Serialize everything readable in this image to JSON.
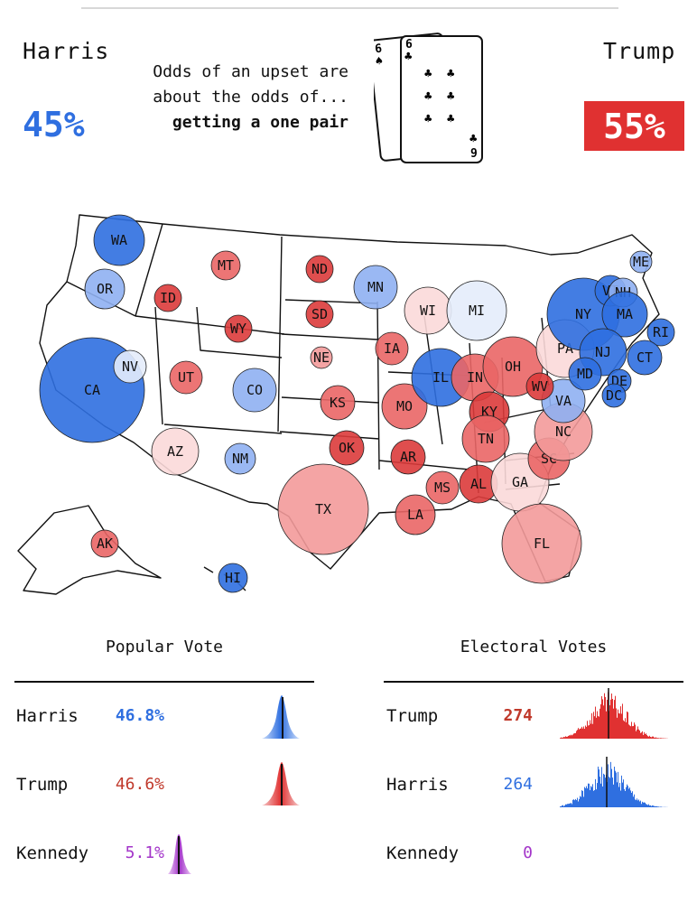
{
  "header": {
    "harris": {
      "name": "Harris",
      "odds": "45%",
      "color": "#2f6fe0"
    },
    "trump": {
      "name": "Trump",
      "odds": "55%",
      "color": "#e03131"
    },
    "odds_line1": "Odds of an upset are",
    "odds_line2": "about the odds of...",
    "odds_line3": "getting a one pair",
    "cards": {
      "back": {
        "rank": "6",
        "suit": "♠"
      },
      "front": {
        "rank": "6",
        "suit": "♣",
        "bottom_rank": "9",
        "bottom_suit": "♣"
      }
    }
  },
  "map": {
    "states": [
      {
        "abbr": "WA",
        "lean": "d",
        "shade": "strong"
      },
      {
        "abbr": "OR",
        "lean": "d",
        "shade": "mid"
      },
      {
        "abbr": "CA",
        "lean": "d",
        "shade": "strong"
      },
      {
        "abbr": "NV",
        "lean": "d",
        "shade": "faint"
      },
      {
        "abbr": "ID",
        "lean": "r",
        "shade": "strong"
      },
      {
        "abbr": "MT",
        "lean": "r",
        "shade": "mid"
      },
      {
        "abbr": "WY",
        "lean": "r",
        "shade": "strong"
      },
      {
        "abbr": "UT",
        "lean": "r",
        "shade": "mid"
      },
      {
        "abbr": "AZ",
        "lean": "r",
        "shade": "faint"
      },
      {
        "abbr": "CO",
        "lean": "d",
        "shade": "mid"
      },
      {
        "abbr": "NM",
        "lean": "d",
        "shade": "mid"
      },
      {
        "abbr": "ND",
        "lean": "r",
        "shade": "strong"
      },
      {
        "abbr": "SD",
        "lean": "r",
        "shade": "strong"
      },
      {
        "abbr": "NE",
        "lean": "r",
        "shade": "light"
      },
      {
        "abbr": "KS",
        "lean": "r",
        "shade": "mid"
      },
      {
        "abbr": "OK",
        "lean": "r",
        "shade": "strong"
      },
      {
        "abbr": "TX",
        "lean": "r",
        "shade": "light"
      },
      {
        "abbr": "MN",
        "lean": "d",
        "shade": "mid"
      },
      {
        "abbr": "IA",
        "lean": "r",
        "shade": "mid"
      },
      {
        "abbr": "MO",
        "lean": "r",
        "shade": "mid"
      },
      {
        "abbr": "AR",
        "lean": "r",
        "shade": "strong"
      },
      {
        "abbr": "LA",
        "lean": "r",
        "shade": "mid"
      },
      {
        "abbr": "WI",
        "lean": "r",
        "shade": "faint"
      },
      {
        "abbr": "IL",
        "lean": "d",
        "shade": "strong"
      },
      {
        "abbr": "MI",
        "lean": "d",
        "shade": "faint"
      },
      {
        "abbr": "IN",
        "lean": "r",
        "shade": "mid"
      },
      {
        "abbr": "OH",
        "lean": "r",
        "shade": "mid"
      },
      {
        "abbr": "KY",
        "lean": "r",
        "shade": "strong"
      },
      {
        "abbr": "TN",
        "lean": "r",
        "shade": "mid"
      },
      {
        "abbr": "MS",
        "lean": "r",
        "shade": "mid"
      },
      {
        "abbr": "AL",
        "lean": "r",
        "shade": "strong"
      },
      {
        "abbr": "GA",
        "lean": "r",
        "shade": "faint"
      },
      {
        "abbr": "FL",
        "lean": "r",
        "shade": "light"
      },
      {
        "abbr": "SC",
        "lean": "r",
        "shade": "mid"
      },
      {
        "abbr": "NC",
        "lean": "r",
        "shade": "light"
      },
      {
        "abbr": "VA",
        "lean": "d",
        "shade": "mid"
      },
      {
        "abbr": "WV",
        "lean": "r",
        "shade": "strong"
      },
      {
        "abbr": "PA",
        "lean": "r",
        "shade": "faint"
      },
      {
        "abbr": "NY",
        "lean": "d",
        "shade": "strong"
      },
      {
        "abbr": "VT",
        "lean": "d",
        "shade": "strong"
      },
      {
        "abbr": "NH",
        "lean": "d",
        "shade": "mid"
      },
      {
        "abbr": "ME",
        "lean": "d",
        "shade": "mid"
      },
      {
        "abbr": "MA",
        "lean": "d",
        "shade": "strong"
      },
      {
        "abbr": "RI",
        "lean": "d",
        "shade": "strong"
      },
      {
        "abbr": "CT",
        "lean": "d",
        "shade": "strong"
      },
      {
        "abbr": "NJ",
        "lean": "d",
        "shade": "strong"
      },
      {
        "abbr": "DE",
        "lean": "d",
        "shade": "strong"
      },
      {
        "abbr": "MD",
        "lean": "d",
        "shade": "strong"
      },
      {
        "abbr": "DC",
        "lean": "d",
        "shade": "strong"
      },
      {
        "abbr": "AK",
        "lean": "r",
        "shade": "mid"
      },
      {
        "abbr": "HI",
        "lean": "d",
        "shade": "strong"
      }
    ]
  },
  "popular_vote": {
    "title": "Popular Vote",
    "rows": [
      {
        "name": "Harris",
        "value": "46.8%",
        "color": "#2f6fe0",
        "bold": true
      },
      {
        "name": "Trump",
        "value": "46.6%",
        "color": "#c0392b",
        "bold": false
      },
      {
        "name": "Kennedy",
        "value": "5.1%",
        "color": "#a335c9",
        "bold": false
      }
    ]
  },
  "electoral_votes": {
    "title": "Electoral Votes",
    "rows": [
      {
        "name": "Trump",
        "value": "274",
        "color": "#c0392b",
        "bold": true
      },
      {
        "name": "Harris",
        "value": "264",
        "color": "#2f6fe0",
        "bold": false
      },
      {
        "name": "Kennedy",
        "value": "0",
        "color": "#a335c9",
        "bold": false
      }
    ]
  }
}
